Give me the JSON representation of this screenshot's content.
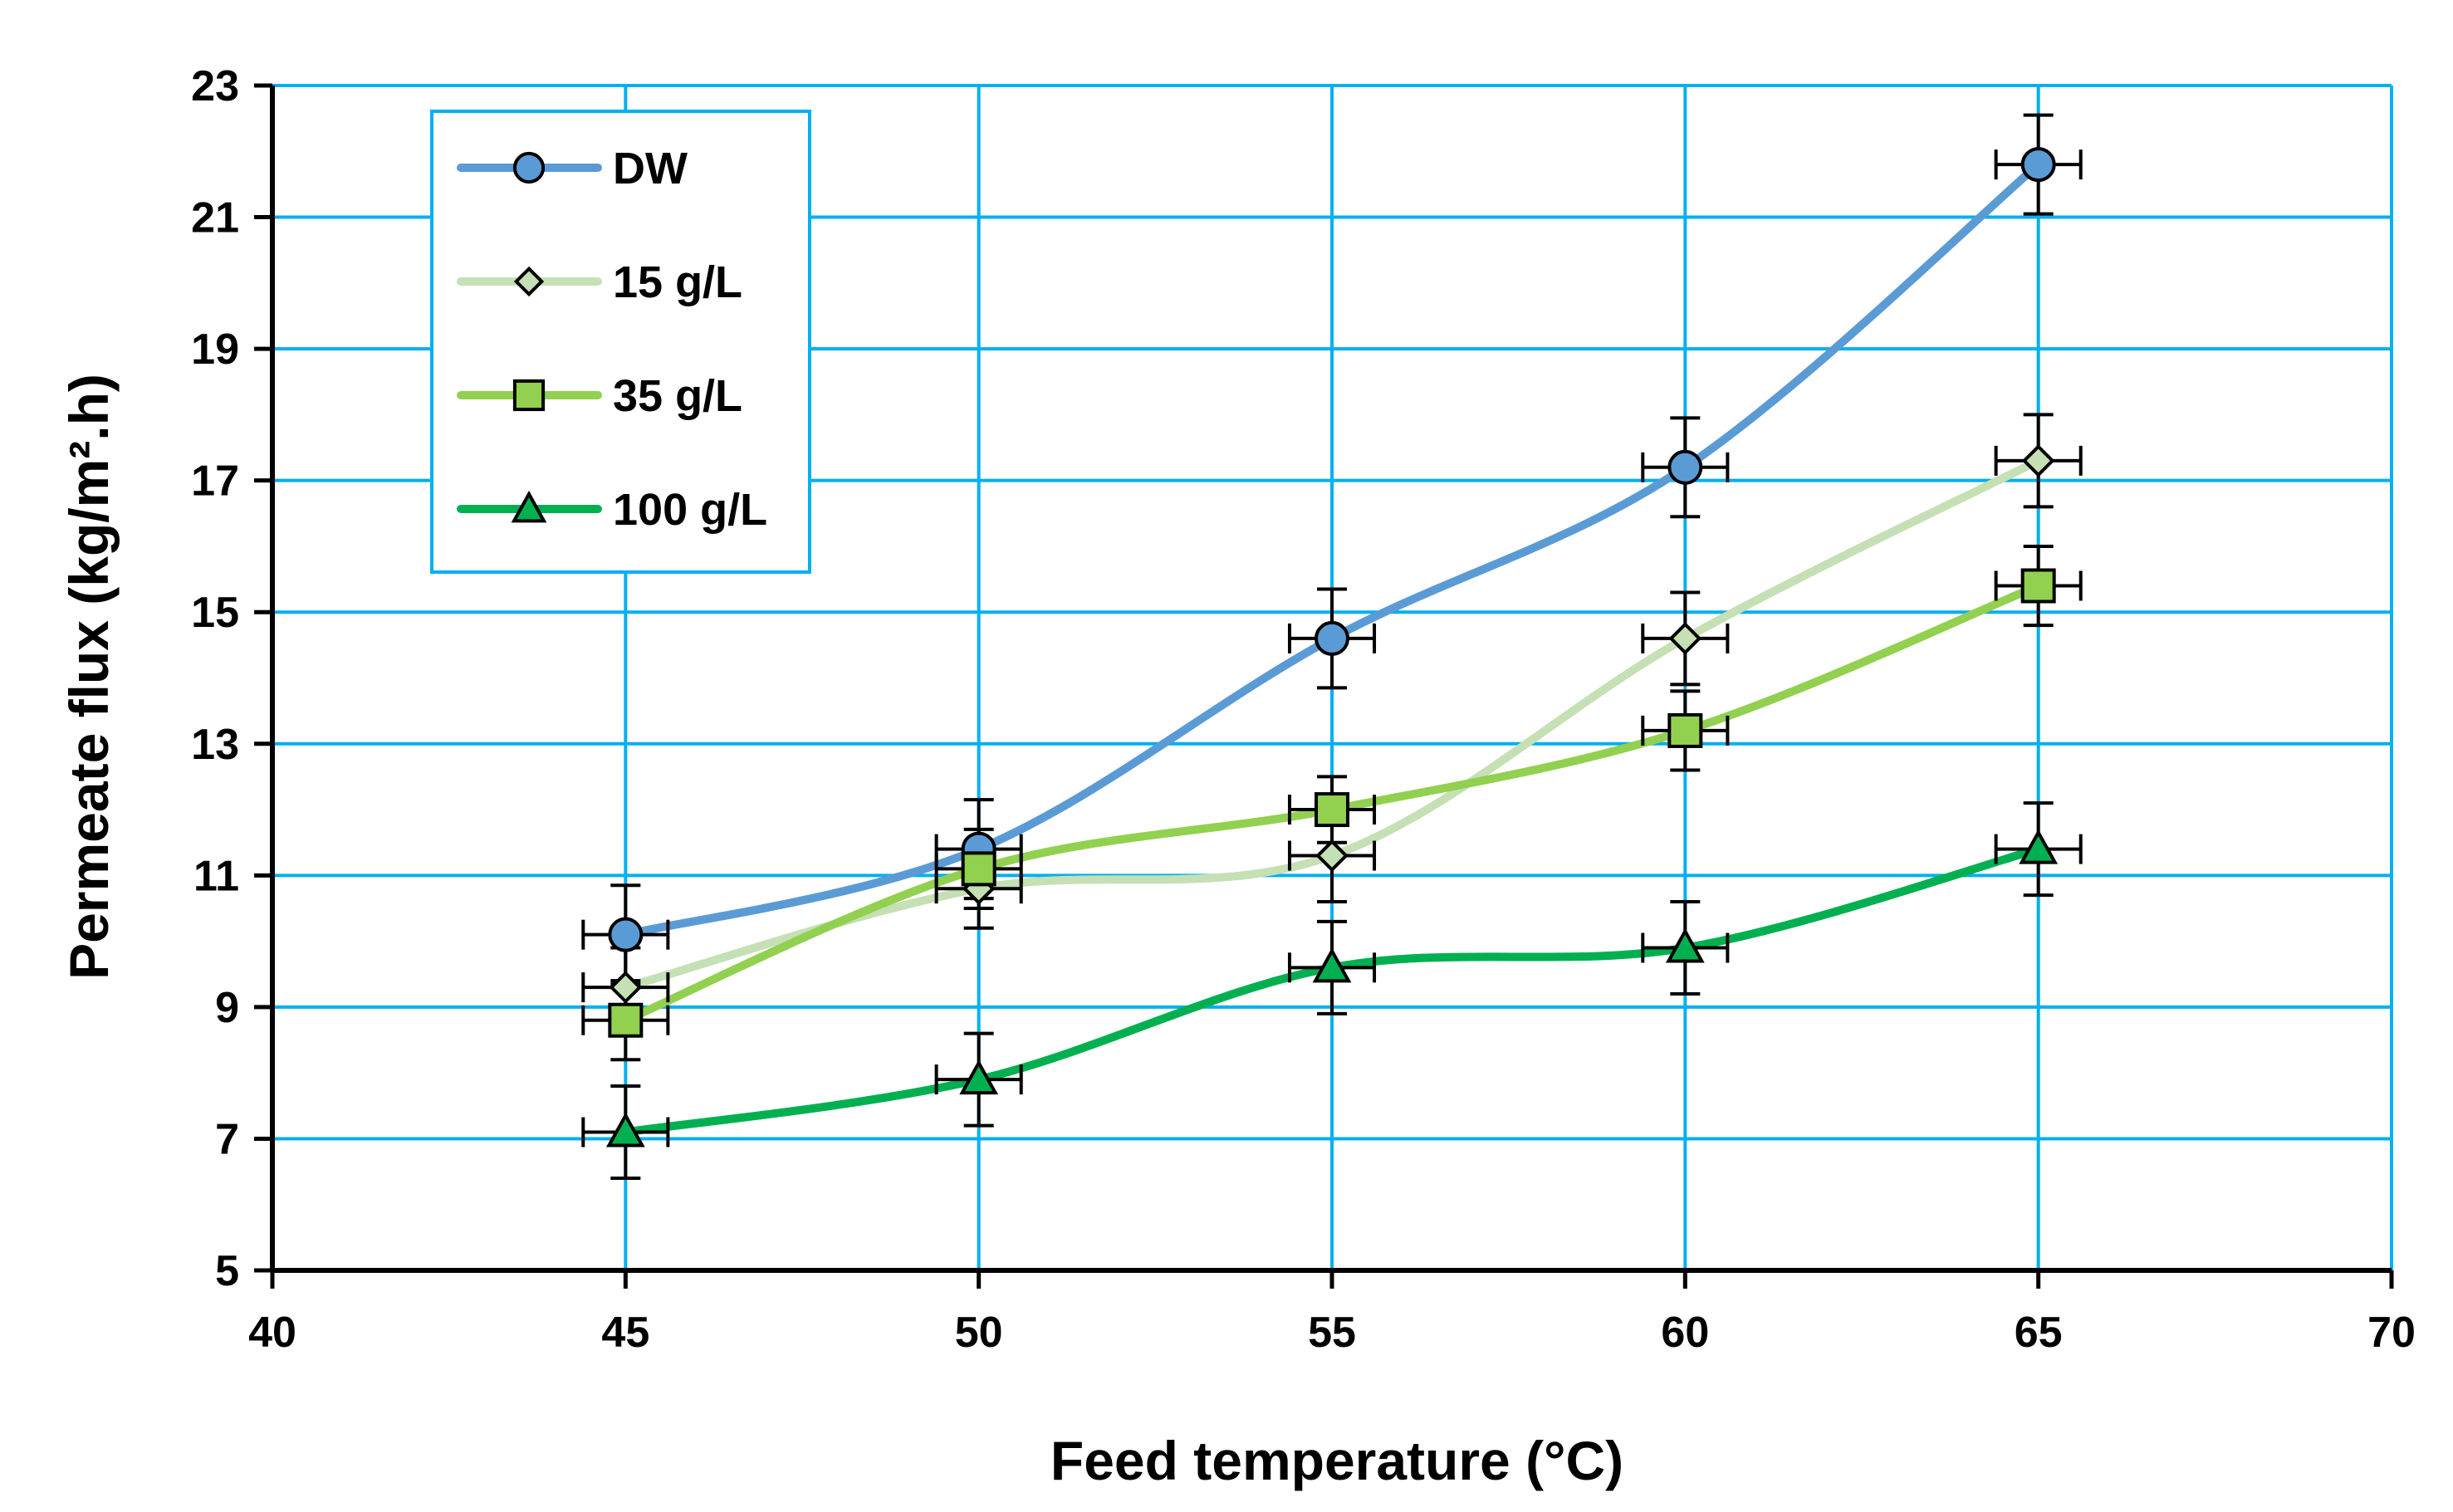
{
  "chart_data": {
    "type": "line",
    "title": "",
    "xlabel": "Feed temperature (°C)",
    "ylabel": "Permeate flux (kg/m².h)",
    "xlim": [
      40,
      70
    ],
    "ylim": [
      5,
      23
    ],
    "xticks": [
      40,
      45,
      50,
      55,
      60,
      65,
      70
    ],
    "yticks": [
      5,
      7,
      9,
      11,
      13,
      15,
      17,
      19,
      21,
      23
    ],
    "grid": true,
    "legend_position": "top-left",
    "x": [
      45,
      50,
      55,
      60,
      65
    ],
    "series": [
      {
        "name": "DW",
        "marker": "circle",
        "color": "#5b9bd5",
        "values": [
          10.1,
          11.4,
          14.6,
          17.2,
          21.8
        ],
        "y_err": [
          0.75,
          0.75,
          0.75,
          0.75,
          0.75
        ],
        "x_err": [
          0.6,
          0.6,
          0.6,
          0.6,
          0.6
        ]
      },
      {
        "name": "15 g/L",
        "marker": "diamond",
        "color": "#c5e0b4",
        "values": [
          9.3,
          10.8,
          11.3,
          14.6,
          17.3
        ],
        "y_err": [
          0.6,
          0.6,
          0.7,
          0.7,
          0.7
        ],
        "x_err": [
          0.6,
          0.6,
          0.6,
          0.6,
          0.6
        ]
      },
      {
        "name": "35 g/L",
        "marker": "square",
        "color": "#92d050",
        "values": [
          8.8,
          11.1,
          12.0,
          13.2,
          15.4
        ],
        "y_err": [
          0.6,
          0.6,
          0.5,
          0.6,
          0.6
        ],
        "x_err": [
          0.6,
          0.6,
          0.6,
          0.6,
          0.6
        ]
      },
      {
        "name": "100 g/L",
        "marker": "triangle",
        "color": "#00b050",
        "values": [
          7.1,
          7.9,
          9.6,
          9.9,
          11.4
        ],
        "y_err": [
          0.7,
          0.7,
          0.7,
          0.7,
          0.7
        ],
        "x_err": [
          0.6,
          0.6,
          0.6,
          0.6,
          0.6
        ]
      }
    ]
  }
}
